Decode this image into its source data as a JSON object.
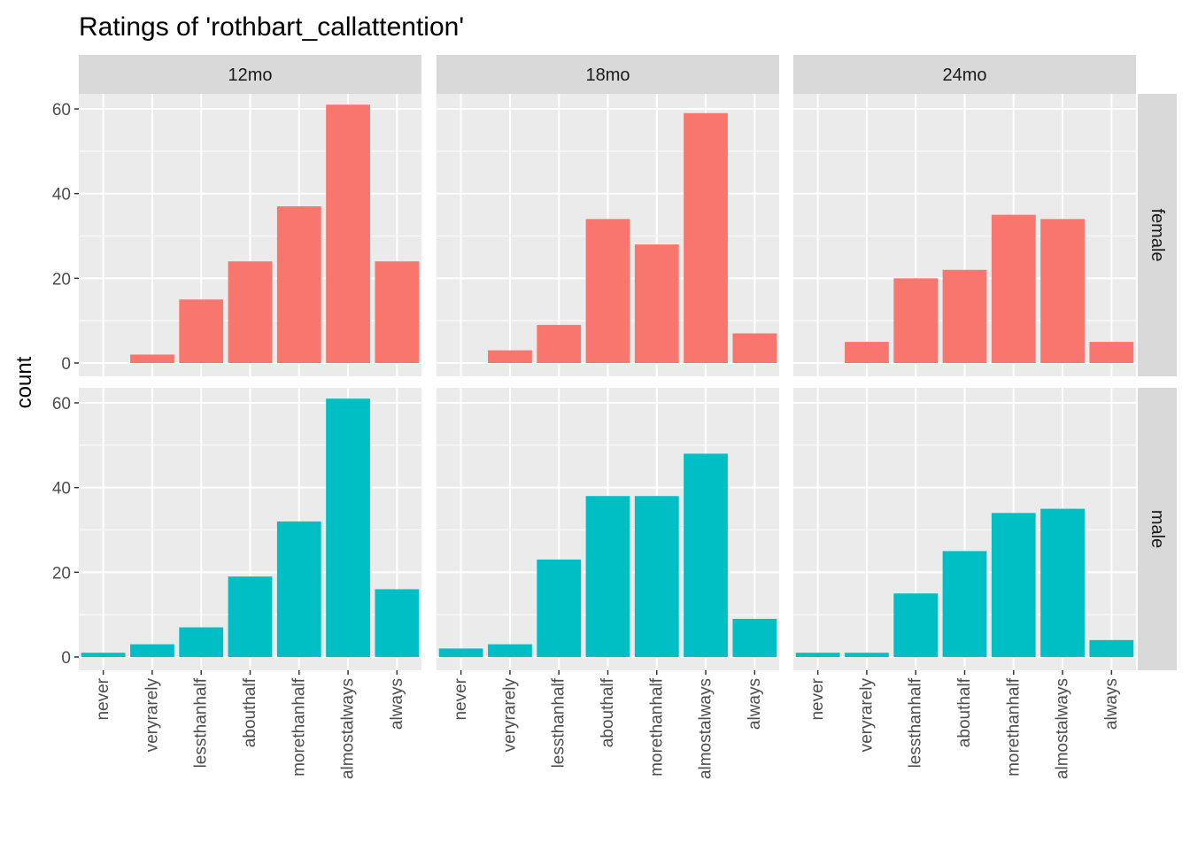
{
  "chart_data": {
    "type": "bar",
    "title": "Ratings of 'rothbart_callattention'",
    "xlabel": "",
    "ylabel": "count",
    "categories": [
      "never",
      "veryrarely",
      "lessthanhalf",
      "abouthalf",
      "morethanhalf",
      "almostalways",
      "always"
    ],
    "column_facets": [
      "12mo",
      "18mo",
      "24mo"
    ],
    "row_facets": [
      "female",
      "male"
    ],
    "y_ticks": [
      "0",
      "20",
      "40",
      "60"
    ],
    "ylim": [
      0,
      64
    ],
    "grid": true,
    "legend": "none",
    "colors": {
      "female": "#F8766D",
      "male": "#00BFC4",
      "panel_bg": "#EBEBEB",
      "strip_bg": "#D9D9D9",
      "grid": "#FFFFFF"
    },
    "panels": [
      {
        "row": "female",
        "column": "12mo",
        "values": [
          0,
          2,
          15,
          24,
          37,
          61,
          24
        ]
      },
      {
        "row": "female",
        "column": "18mo",
        "values": [
          0,
          3,
          9,
          34,
          28,
          59,
          7
        ]
      },
      {
        "row": "female",
        "column": "24mo",
        "values": [
          0,
          5,
          20,
          22,
          35,
          34,
          5
        ]
      },
      {
        "row": "male",
        "column": "12mo",
        "values": [
          1,
          3,
          7,
          19,
          32,
          61,
          16
        ]
      },
      {
        "row": "male",
        "column": "18mo",
        "values": [
          2,
          3,
          23,
          38,
          38,
          48,
          9
        ]
      },
      {
        "row": "male",
        "column": "24mo",
        "values": [
          1,
          1,
          15,
          25,
          34,
          35,
          4
        ]
      }
    ]
  }
}
